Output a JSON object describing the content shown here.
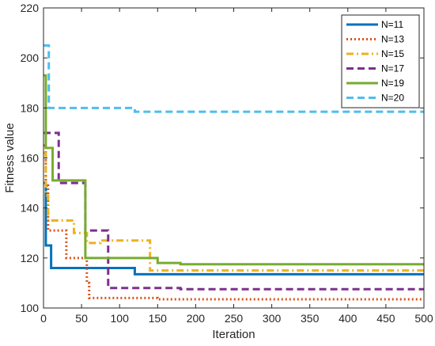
{
  "chart_data": {
    "type": "line",
    "title": "",
    "xlabel": "Iteration",
    "ylabel": "Fitness value",
    "xlim": [
      0,
      500
    ],
    "ylim": [
      100,
      220
    ],
    "xticks": [
      0,
      50,
      100,
      150,
      200,
      250,
      300,
      350,
      400,
      450,
      500
    ],
    "yticks": [
      100,
      120,
      140,
      160,
      180,
      200,
      220
    ],
    "legend_position": "top-right",
    "grid": false,
    "series": [
      {
        "name": "N=11",
        "color": "#0072BD",
        "dash": "solid",
        "points": [
          [
            0,
            150
          ],
          [
            3,
            150
          ],
          [
            3,
            125
          ],
          [
            10,
            125
          ],
          [
            10,
            116
          ],
          [
            120,
            116
          ],
          [
            120,
            113.5
          ],
          [
            500,
            113.5
          ]
        ]
      },
      {
        "name": "N=13",
        "color": "#D95319",
        "dash": "dotted",
        "points": [
          [
            0,
            165
          ],
          [
            3,
            165
          ],
          [
            3,
            149
          ],
          [
            6,
            149
          ],
          [
            6,
            131
          ],
          [
            30,
            131
          ],
          [
            30,
            120
          ],
          [
            57,
            120
          ],
          [
            57,
            110
          ],
          [
            60,
            110
          ],
          [
            60,
            104
          ],
          [
            150,
            104
          ],
          [
            150,
            103.5
          ],
          [
            500,
            103.5
          ]
        ]
      },
      {
        "name": "N=15",
        "color": "#EDB120",
        "dash": "dashdot",
        "points": [
          [
            0,
            162
          ],
          [
            3,
            162
          ],
          [
            3,
            145
          ],
          [
            6,
            145
          ],
          [
            6,
            135
          ],
          [
            40,
            135
          ],
          [
            40,
            130
          ],
          [
            57,
            130
          ],
          [
            57,
            126
          ],
          [
            75,
            126
          ],
          [
            75,
            127
          ],
          [
            140,
            127
          ],
          [
            140,
            115
          ],
          [
            500,
            115
          ]
        ]
      },
      {
        "name": "N=17",
        "color": "#7E2F8E",
        "dash": "dashed",
        "points": [
          [
            0,
            170
          ],
          [
            20,
            170
          ],
          [
            20,
            150
          ],
          [
            55,
            150
          ],
          [
            55,
            131
          ],
          [
            85,
            131
          ],
          [
            85,
            108
          ],
          [
            180,
            108
          ],
          [
            180,
            107.5
          ],
          [
            500,
            107.5
          ]
        ]
      },
      {
        "name": "N=19",
        "color": "#77AC30",
        "dash": "solid",
        "points": [
          [
            0,
            193
          ],
          [
            3,
            193
          ],
          [
            3,
            164
          ],
          [
            12,
            164
          ],
          [
            12,
            151
          ],
          [
            55,
            151
          ],
          [
            55,
            120
          ],
          [
            150,
            120
          ],
          [
            150,
            118
          ],
          [
            180,
            118
          ],
          [
            180,
            117.5
          ],
          [
            500,
            117.5
          ]
        ]
      },
      {
        "name": "N=20",
        "color": "#4DBEEE",
        "dash": "dashed",
        "points": [
          [
            0,
            205
          ],
          [
            7,
            205
          ],
          [
            7,
            180
          ],
          [
            120,
            180
          ],
          [
            120,
            178.5
          ],
          [
            500,
            178.5
          ]
        ]
      }
    ]
  }
}
